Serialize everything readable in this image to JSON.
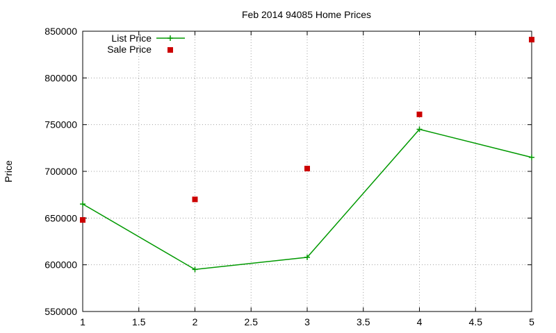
{
  "chart_data": {
    "type": "line",
    "title": "Feb 2014 94085 Home Prices",
    "xlabel": "",
    "ylabel": "Price",
    "xlim": [
      1,
      5
    ],
    "ylim": [
      550000,
      850000
    ],
    "x_ticks": [
      "1",
      "1.5",
      "2",
      "2.5",
      "3",
      "3.5",
      "4",
      "4.5",
      "5"
    ],
    "y_ticks": [
      "550000",
      "600000",
      "650000",
      "700000",
      "750000",
      "800000",
      "850000"
    ],
    "grid": true,
    "legend_position": "top-left",
    "series": [
      {
        "name": "List Price",
        "style": "line-plus",
        "color": "#009900",
        "x": [
          1,
          2,
          3,
          4,
          5
        ],
        "y": [
          665000,
          595000,
          608000,
          745000,
          715000
        ]
      },
      {
        "name": "Sale Price",
        "style": "square-points",
        "color": "#cc0000",
        "x": [
          1,
          2,
          3,
          4,
          5
        ],
        "y": [
          648000,
          670000,
          703000,
          761000,
          841000
        ]
      }
    ]
  }
}
